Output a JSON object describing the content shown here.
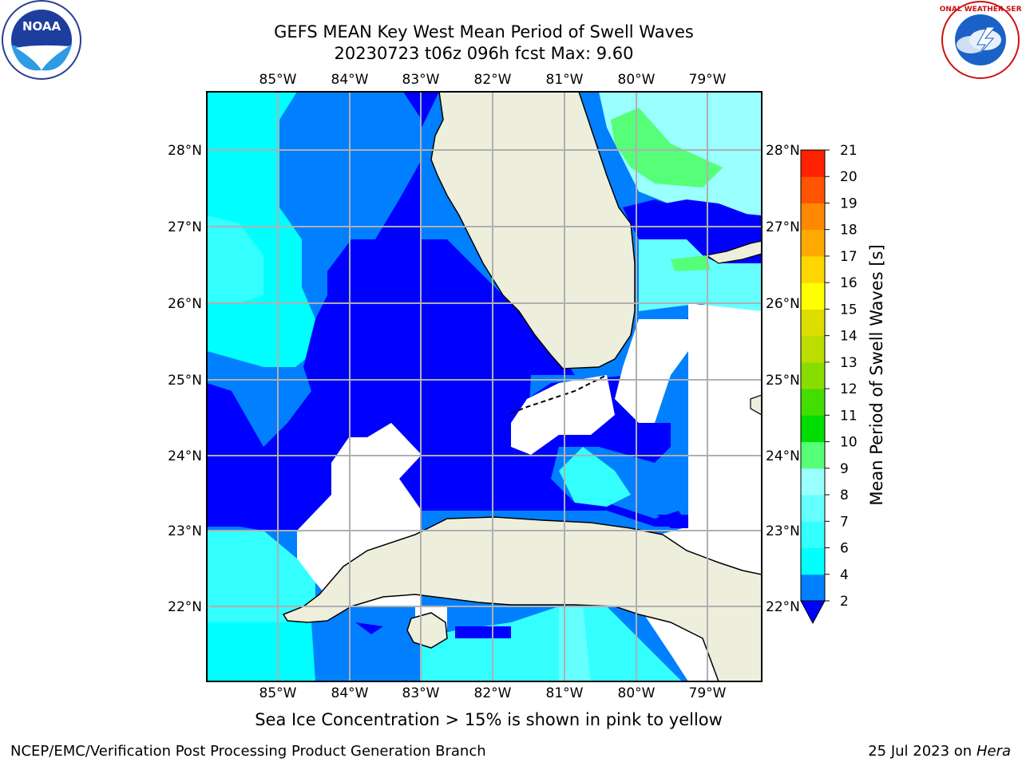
{
  "title_line1": "GEFS MEAN Key West Mean Period of Swell Waves",
  "title_line2": "20230723 t06z 096h fcst   Max: 9.60",
  "lon_labels": [
    "85°W",
    "84°W",
    "83°W",
    "82°W",
    "81°W",
    "80°W",
    "79°W"
  ],
  "lat_labels": [
    "28°N",
    "27°N",
    "26°N",
    "25°N",
    "24°N",
    "23°N",
    "22°N"
  ],
  "colorbar": {
    "label": "Mean Period of Swell Waves [s]",
    "ticks": [
      "2",
      "4",
      "6",
      "7",
      "8",
      "9",
      "10",
      "11",
      "12",
      "13",
      "14",
      "15",
      "16",
      "17",
      "18",
      "19",
      "20",
      "21"
    ],
    "colors": [
      "#0000ff",
      "#0080ff",
      "#00ffff",
      "#33ffff",
      "#66ffff",
      "#99ffff",
      "#55ff77",
      "#00dd00",
      "#44dd00",
      "#88dd00",
      "#bbdd00",
      "#dddd00",
      "#ffff00",
      "#ffd700",
      "#ffaa00",
      "#ff8800",
      "#ff5500",
      "#ff2200",
      "#ff0000"
    ]
  },
  "sea_ice_note": "Sea Ice Concentration > 15% is shown in pink to yellow",
  "footer_left": "NCEP/EMC/Verification Post Processing Product Generation Branch",
  "footer_right_date": "25 Jul 2023 on",
  "footer_right_host": "Hera",
  "noaa_logo_text": "NOAA",
  "nws_logo_text": "NATIONAL WEATHER SERVICE"
}
